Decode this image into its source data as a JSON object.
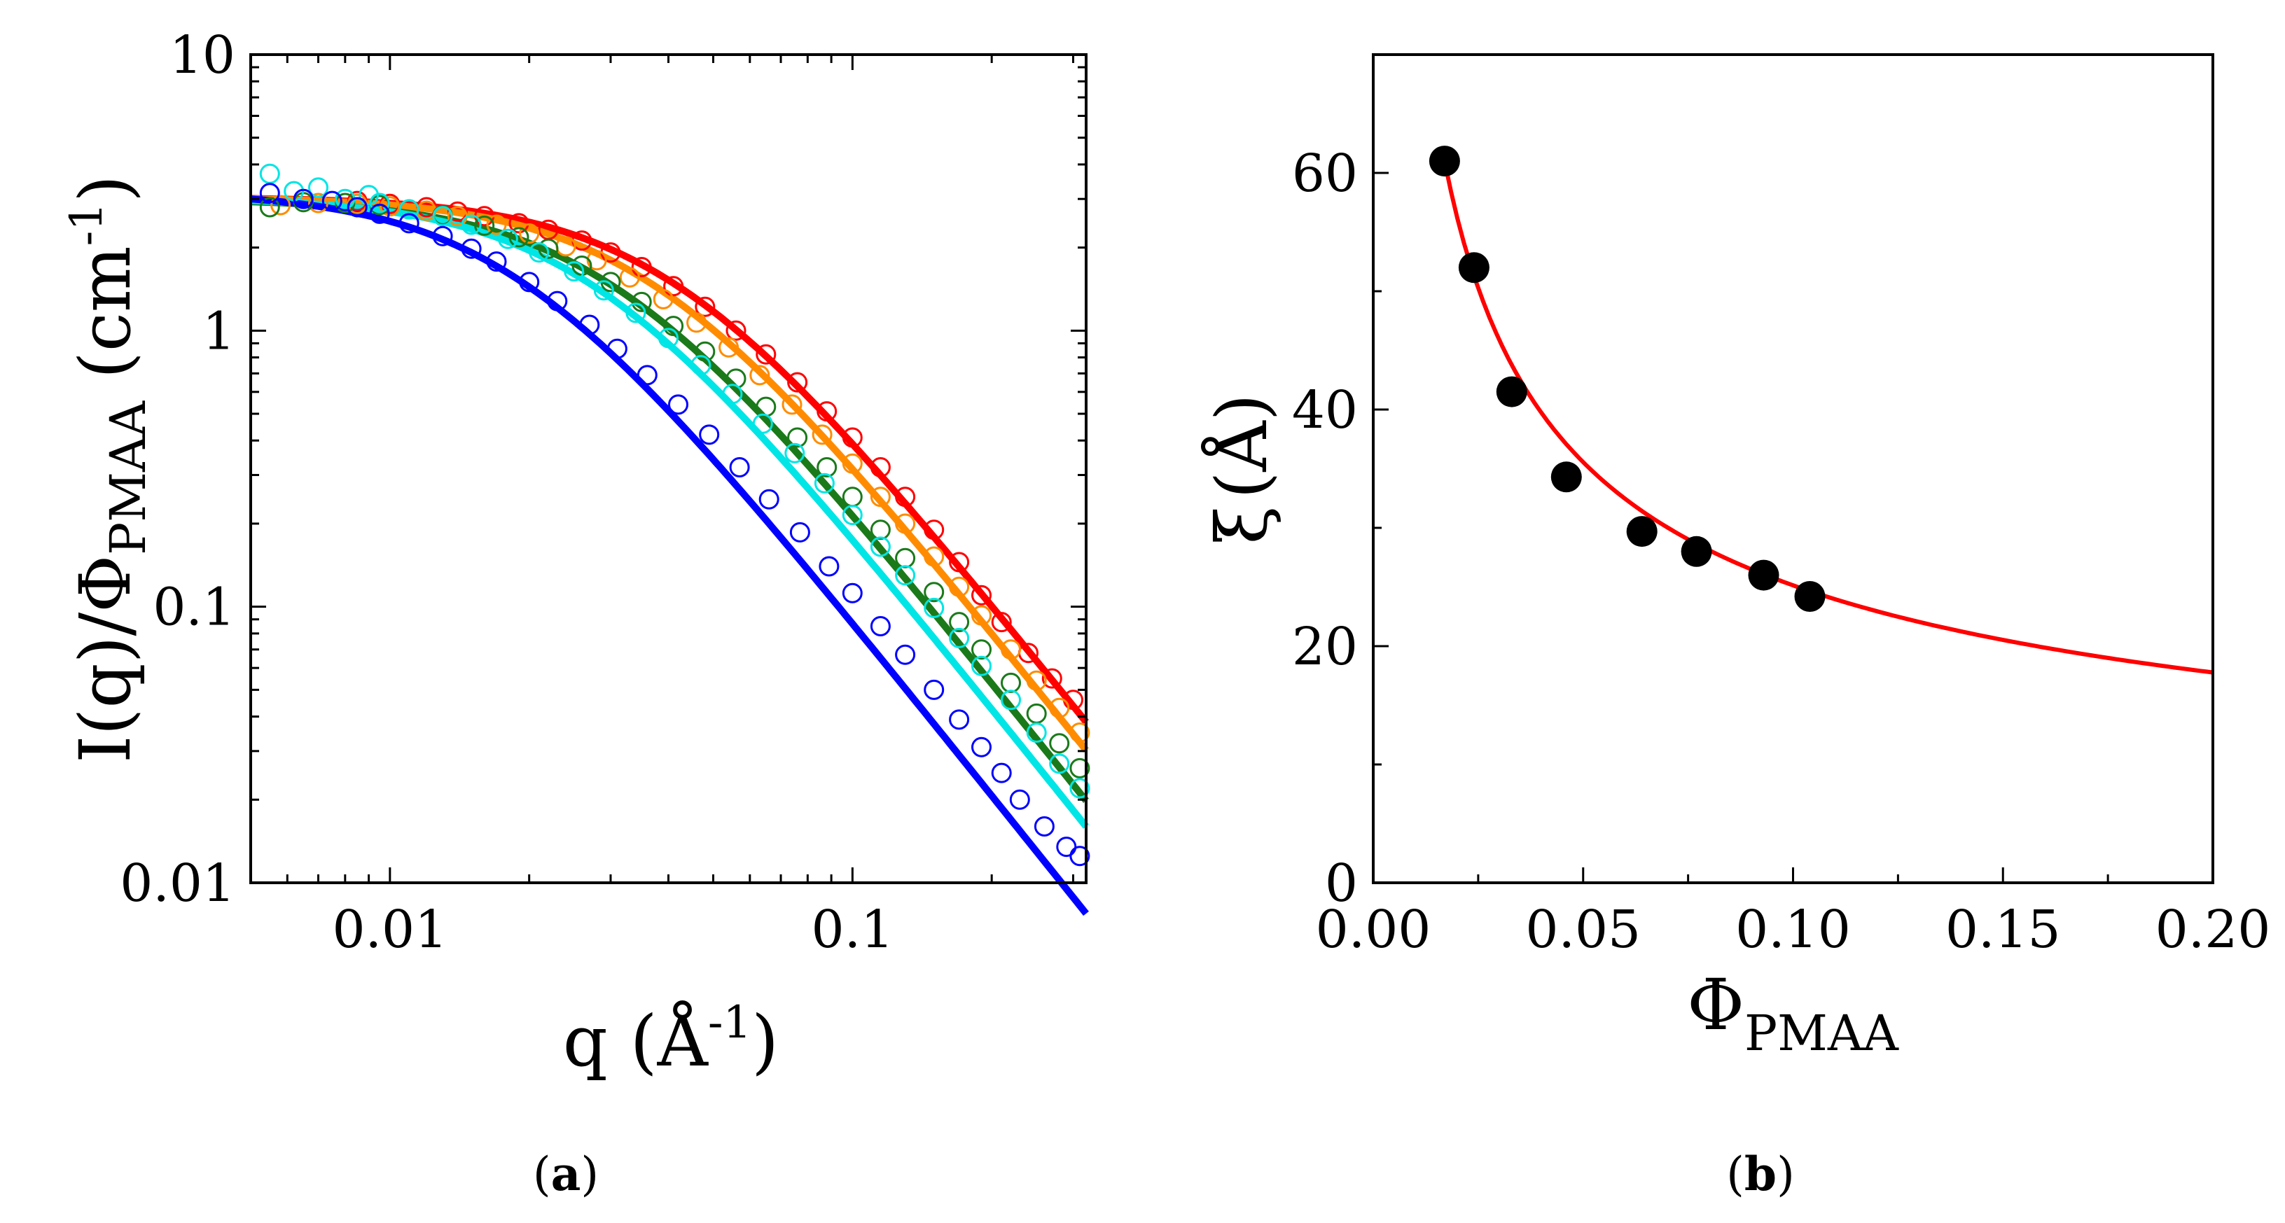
{
  "panels": {
    "a": {
      "caption_open": "(",
      "caption_letter": "a",
      "caption_close": ")"
    },
    "b": {
      "caption_open": "(",
      "caption_letter": "b",
      "caption_close": ")"
    }
  },
  "chart_data": [
    {
      "id": "a",
      "type": "scatter",
      "xscale": "log",
      "yscale": "log",
      "xlim": [
        0.005,
        0.32
      ],
      "ylim": [
        0.01,
        10
      ],
      "xlabel": {
        "main": "q (Å",
        "sup": "-1",
        "tail": ")"
      },
      "ylabel": {
        "main": "I(q)/Φ",
        "sub": "PMAA",
        "tail": " (cm",
        "sup": "-1",
        "tail2": ")"
      },
      "xticks": [
        {
          "value": 0.01,
          "label": "0.01"
        },
        {
          "value": 0.1,
          "label": "0.1"
        }
      ],
      "yticks": [
        {
          "value": 0.01,
          "label": "0.01"
        },
        {
          "value": 0.1,
          "label": "0.1"
        },
        {
          "value": 1,
          "label": "1"
        },
        {
          "value": 10,
          "label": "10"
        }
      ],
      "series": [
        {
          "name": "red",
          "color": "#ff0000",
          "I0": 3.05,
          "xi": 25,
          "slope": 2.1,
          "points": [
            [
              0.0085,
              2.95
            ],
            [
              0.01,
              2.88
            ],
            [
              0.012,
              2.8
            ],
            [
              0.014,
              2.7
            ],
            [
              0.016,
              2.6
            ],
            [
              0.019,
              2.45
            ],
            [
              0.022,
              2.32
            ],
            [
              0.026,
              2.12
            ],
            [
              0.03,
              1.92
            ],
            [
              0.035,
              1.7
            ],
            [
              0.041,
              1.45
            ],
            [
              0.048,
              1.22
            ],
            [
              0.056,
              1.0
            ],
            [
              0.065,
              0.82
            ],
            [
              0.076,
              0.65
            ],
            [
              0.088,
              0.51
            ],
            [
              0.1,
              0.41
            ],
            [
              0.115,
              0.32
            ],
            [
              0.13,
              0.25
            ],
            [
              0.15,
              0.19
            ],
            [
              0.17,
              0.145
            ],
            [
              0.19,
              0.11
            ],
            [
              0.21,
              0.088
            ],
            [
              0.24,
              0.068
            ],
            [
              0.27,
              0.055
            ],
            [
              0.3,
              0.046
            ]
          ]
        },
        {
          "name": "orange",
          "color": "#ff8c00",
          "I0": 3.05,
          "xi": 28,
          "slope": 2.1,
          "points": [
            [
              0.0058,
              2.85
            ],
            [
              0.007,
              2.9
            ],
            [
              0.0085,
              2.88
            ],
            [
              0.01,
              2.82
            ],
            [
              0.012,
              2.72
            ],
            [
              0.014,
              2.6
            ],
            [
              0.017,
              2.42
            ],
            [
              0.02,
              2.25
            ],
            [
              0.024,
              2.02
            ],
            [
              0.028,
              1.8
            ],
            [
              0.033,
              1.56
            ],
            [
              0.039,
              1.3
            ],
            [
              0.046,
              1.07
            ],
            [
              0.054,
              0.87
            ],
            [
              0.063,
              0.69
            ],
            [
              0.074,
              0.54
            ],
            [
              0.086,
              0.42
            ],
            [
              0.1,
              0.33
            ],
            [
              0.115,
              0.25
            ],
            [
              0.13,
              0.2
            ],
            [
              0.15,
              0.152
            ],
            [
              0.17,
              0.118
            ],
            [
              0.19,
              0.093
            ],
            [
              0.22,
              0.07
            ],
            [
              0.25,
              0.054
            ],
            [
              0.28,
              0.043
            ],
            [
              0.31,
              0.035
            ]
          ]
        },
        {
          "name": "green",
          "color": "#1a7a1a",
          "I0": 3.0,
          "xi": 34,
          "slope": 2.1,
          "points": [
            [
              0.0055,
              2.8
            ],
            [
              0.0065,
              2.92
            ],
            [
              0.008,
              2.9
            ],
            [
              0.0095,
              2.85
            ],
            [
              0.011,
              2.75
            ],
            [
              0.013,
              2.62
            ],
            [
              0.016,
              2.4
            ],
            [
              0.019,
              2.18
            ],
            [
              0.022,
              1.98
            ],
            [
              0.026,
              1.72
            ],
            [
              0.03,
              1.5
            ],
            [
              0.035,
              1.27
            ],
            [
              0.041,
              1.04
            ],
            [
              0.048,
              0.84
            ],
            [
              0.056,
              0.67
            ],
            [
              0.065,
              0.53
            ],
            [
              0.076,
              0.41
            ],
            [
              0.088,
              0.32
            ],
            [
              0.1,
              0.25
            ],
            [
              0.115,
              0.19
            ],
            [
              0.13,
              0.15
            ],
            [
              0.15,
              0.113
            ],
            [
              0.17,
              0.088
            ],
            [
              0.19,
              0.07
            ],
            [
              0.22,
              0.053
            ],
            [
              0.25,
              0.041
            ],
            [
              0.28,
              0.032
            ],
            [
              0.31,
              0.026
            ]
          ]
        },
        {
          "name": "cyan",
          "color": "#00e5e5",
          "I0": 3.05,
          "xi": 38,
          "slope": 2.1,
          "points": [
            [
              0.0055,
              3.7
            ],
            [
              0.0062,
              3.2
            ],
            [
              0.007,
              3.3
            ],
            [
              0.008,
              3.0
            ],
            [
              0.009,
              3.1
            ],
            [
              0.0095,
              2.9
            ],
            [
              0.011,
              2.75
            ],
            [
              0.013,
              2.6
            ],
            [
              0.015,
              2.42
            ],
            [
              0.018,
              2.15
            ],
            [
              0.021,
              1.92
            ],
            [
              0.025,
              1.64
            ],
            [
              0.029,
              1.4
            ],
            [
              0.034,
              1.16
            ],
            [
              0.04,
              0.94
            ],
            [
              0.047,
              0.75
            ],
            [
              0.055,
              0.59
            ],
            [
              0.064,
              0.46
            ],
            [
              0.075,
              0.36
            ],
            [
              0.087,
              0.28
            ],
            [
              0.1,
              0.215
            ],
            [
              0.115,
              0.165
            ],
            [
              0.13,
              0.13
            ],
            [
              0.15,
              0.099
            ],
            [
              0.17,
              0.077
            ],
            [
              0.19,
              0.061
            ],
            [
              0.22,
              0.046
            ],
            [
              0.25,
              0.035
            ],
            [
              0.28,
              0.027
            ],
            [
              0.31,
              0.022
            ]
          ]
        },
        {
          "name": "blue",
          "color": "#0000ff",
          "I0": 3.2,
          "xi": 55,
          "slope": 2.1,
          "points": [
            [
              0.0055,
              3.15
            ],
            [
              0.0065,
              3.0
            ],
            [
              0.0075,
              2.95
            ],
            [
              0.0085,
              2.8
            ],
            [
              0.0095,
              2.65
            ],
            [
              0.011,
              2.45
            ],
            [
              0.013,
              2.2
            ],
            [
              0.015,
              1.98
            ],
            [
              0.017,
              1.78
            ],
            [
              0.02,
              1.5
            ],
            [
              0.023,
              1.28
            ],
            [
              0.027,
              1.05
            ],
            [
              0.031,
              0.86
            ],
            [
              0.036,
              0.69
            ],
            [
              0.042,
              0.54
            ],
            [
              0.049,
              0.42
            ],
            [
              0.057,
              0.32
            ],
            [
              0.066,
              0.245
            ],
            [
              0.077,
              0.186
            ],
            [
              0.089,
              0.14
            ],
            [
              0.1,
              0.112
            ],
            [
              0.115,
              0.085
            ],
            [
              0.13,
              0.067
            ],
            [
              0.15,
              0.05
            ],
            [
              0.17,
              0.039
            ],
            [
              0.19,
              0.031
            ],
            [
              0.21,
              0.025
            ],
            [
              0.23,
              0.02
            ],
            [
              0.26,
              0.016
            ],
            [
              0.29,
              0.0135
            ],
            [
              0.31,
              0.0125
            ]
          ]
        }
      ]
    },
    {
      "id": "b",
      "type": "scatter",
      "xlim": [
        0,
        0.2
      ],
      "ylim": [
        0,
        70
      ],
      "xlabel": {
        "main": "Φ",
        "sub": "PMAA"
      },
      "ylabel": {
        "main": "ξ",
        "tail": "(Å)"
      },
      "xticks": [
        {
          "value": 0,
          "label": "0.00"
        },
        {
          "value": 0.05,
          "label": "0.05"
        },
        {
          "value": 0.1,
          "label": "0.10"
        },
        {
          "value": 0.15,
          "label": "0.15"
        },
        {
          "value": 0.2,
          "label": "0.20"
        }
      ],
      "yticks": [
        {
          "value": 0,
          "label": "0"
        },
        {
          "value": 20,
          "label": "20"
        },
        {
          "value": 40,
          "label": "40"
        },
        {
          "value": 60,
          "label": "60"
        }
      ],
      "points": {
        "color": "#000000",
        "x": [
          0.017,
          0.024,
          0.033,
          0.046,
          0.064,
          0.077,
          0.093,
          0.104
        ],
        "y": [
          61,
          52,
          41.5,
          34.3,
          29.7,
          28,
          26,
          24.2
        ]
      },
      "fit": {
        "color": "#ff0000",
        "coef": 7.95,
        "exponent": -0.5,
        "xrange": [
          0.017,
          0.2
        ]
      }
    }
  ]
}
